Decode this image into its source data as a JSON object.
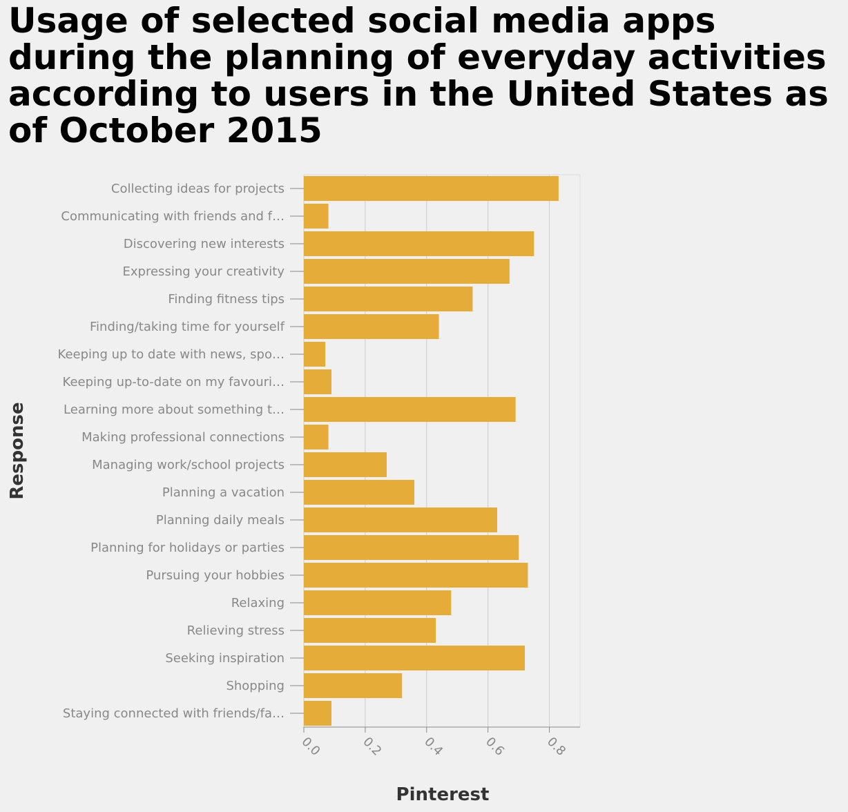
{
  "chart_data": {
    "type": "bar",
    "orientation": "horizontal",
    "title": "Usage of selected social media apps during the planning of everyday activities according to users in the United States as of October 2015",
    "xlabel": "Pinterest",
    "ylabel": "Response",
    "xlim": [
      0,
      0.9
    ],
    "x_ticks": [
      "0.0",
      "0.2",
      "0.4",
      "0.6",
      "0.8"
    ],
    "x_tick_values": [
      0,
      0.2,
      0.4,
      0.6,
      0.8
    ],
    "grid": true,
    "bar_color": "#e5ac3a",
    "categories": [
      "Collecting ideas for projects",
      "Communicating with friends and f…",
      "Discovering new interests",
      "Expressing your creativity",
      "Finding fitness tips",
      "Finding/taking time for yourself",
      "Keeping up to date with news, spo…",
      "Keeping up-to-date on my favouri…",
      "Learning more about something t…",
      "Making professional connections",
      "Managing work/school projects",
      "Planning a vacation",
      "Planning daily meals",
      "Planning for holidays or parties",
      "Pursuing your hobbies",
      "Relaxing",
      "Relieving stress",
      "Seeking inspiration",
      "Shopping",
      "Staying connected with friends/fa…"
    ],
    "values": [
      0.83,
      0.08,
      0.75,
      0.67,
      0.55,
      0.44,
      0.07,
      0.09,
      0.69,
      0.08,
      0.27,
      0.36,
      0.63,
      0.7,
      0.73,
      0.48,
      0.43,
      0.72,
      0.32,
      0.09
    ]
  }
}
